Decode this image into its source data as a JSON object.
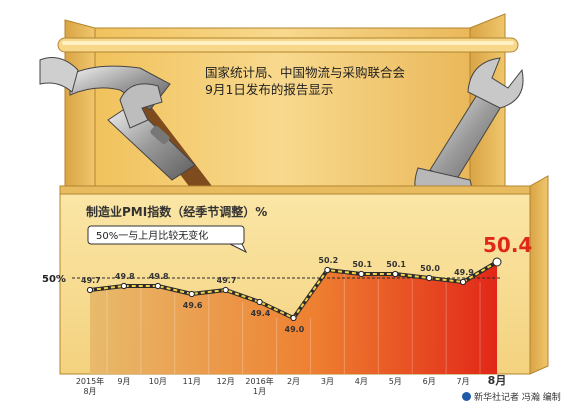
{
  "note": {
    "line1": "国家统计局、中国物流与采购联合会",
    "line2": "9月1日发布的报告显示"
  },
  "source": "新华社记者 冯瀚 编制",
  "chart_data": {
    "type": "area",
    "title": "制造业PMI指数（经季节调整）%",
    "callout": "50%一与上月比较无变化",
    "reference_line": {
      "value": 50,
      "label": "50%"
    },
    "categories": [
      "2015年8月",
      "9月",
      "10月",
      "11月",
      "12月",
      "2016年1月",
      "2月",
      "3月",
      "4月",
      "5月",
      "6月",
      "7月",
      "8月"
    ],
    "values": [
      49.7,
      49.8,
      49.8,
      49.6,
      49.7,
      49.4,
      49.0,
      50.2,
      50.1,
      50.1,
      50.0,
      49.9,
      50.4
    ],
    "value_labels": [
      "49.7",
      "49.8",
      "49.8",
      "49.6",
      "49.7",
      "49.4",
      "49.0",
      "50.2",
      "50.1",
      "50.1",
      "50.0",
      "49.9",
      "50.4"
    ],
    "ylim": [
      48.7,
      50.8
    ],
    "grid": false,
    "colors": {
      "gradient_start": "#e7b96a",
      "gradient_end": "#e01e12",
      "highlight_label": "#e02818"
    }
  }
}
